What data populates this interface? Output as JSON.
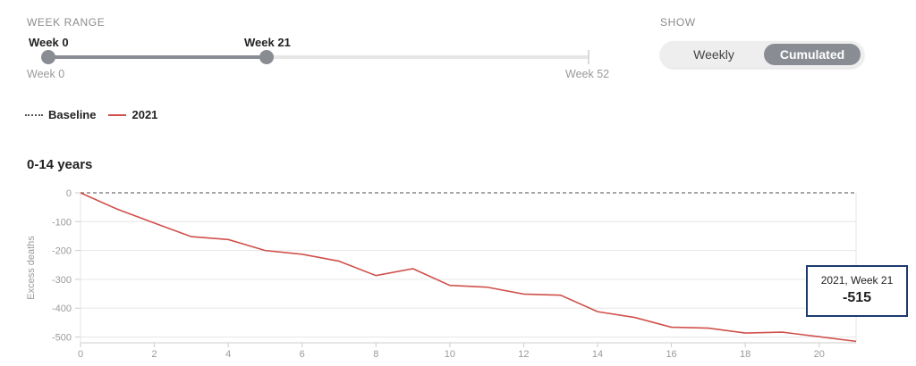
{
  "controls": {
    "week_range_label": "WEEK RANGE",
    "show_label": "SHOW",
    "slider": {
      "start_label": "Week 0",
      "end_label": "Week 21",
      "min_label": "Week 0",
      "max_label": "Week 52",
      "start": 0,
      "end": 21,
      "max": 52
    },
    "toggle": {
      "weekly": "Weekly",
      "cumulated": "Cumulated",
      "selected": "cumulated"
    }
  },
  "legend": [
    {
      "label": "Baseline",
      "style": "dotted",
      "color": "#555555"
    },
    {
      "label": "2021",
      "style": "solid",
      "color": "#d0504b"
    }
  ],
  "panel_title": "0-14 years",
  "tooltip": {
    "header": "2021, Week 21",
    "value": "-515"
  },
  "chart_data": {
    "type": "line",
    "xlabel": "",
    "ylabel": "Excess deaths",
    "xlim": [
      0,
      21
    ],
    "ylim": [
      -520,
      0
    ],
    "x_ticks": [
      0,
      2,
      4,
      6,
      8,
      10,
      12,
      14,
      16,
      18,
      20
    ],
    "y_ticks": [
      0,
      -100,
      -200,
      -300,
      -400,
      -500
    ],
    "grid": true,
    "series": [
      {
        "name": "Baseline",
        "color": "#888888",
        "dash": true,
        "x": [
          0,
          21
        ],
        "values": [
          0,
          0
        ]
      },
      {
        "name": "2021",
        "color": "#d0504b",
        "dash": false,
        "x": [
          0,
          1,
          2,
          3,
          4,
          5,
          6,
          7,
          8,
          9,
          10,
          11,
          12,
          13,
          14,
          15,
          16,
          17,
          18,
          19,
          20,
          21
        ],
        "values": [
          0,
          -57,
          -105,
          -152,
          -162,
          -200,
          -213,
          -237,
          -287,
          -263,
          -321,
          -327,
          -351,
          -355,
          -412,
          -432,
          -466,
          -469,
          -486,
          -483,
          -499,
          -515
        ]
      }
    ]
  }
}
